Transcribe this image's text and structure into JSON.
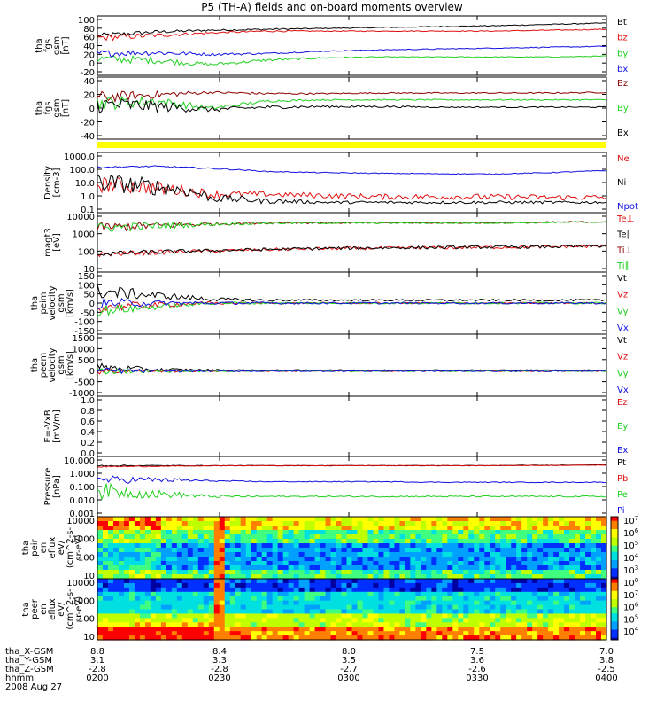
{
  "title": "P5 (TH-A) fields and on-board moments overview",
  "colors": {
    "black": "#000000",
    "red": "#e01010",
    "green": "#20d020",
    "blue": "#1010e0",
    "darkred": "#8b0000",
    "yellow": "#ffff00"
  },
  "chart_data": [
    {
      "type": "line",
      "ylabel": [
        "tha",
        "fgs",
        "gsm",
        "[nT]"
      ],
      "ytick_labels": [
        "100",
        "80",
        "60",
        "40",
        "20",
        "0",
        "-20"
      ],
      "ylim": [
        -25,
        100
      ],
      "series": [
        {
          "name": "Bt",
          "color": "black",
          "level": [
            60,
            68,
            72,
            74,
            76,
            78,
            80,
            82,
            85,
            88
          ],
          "noise": [
            6,
            4,
            2,
            2,
            1,
            1,
            1,
            1,
            1,
            1
          ]
        },
        {
          "name": "bz",
          "color": "red",
          "level": [
            55,
            60,
            66,
            70,
            70,
            70,
            70,
            70,
            72,
            74
          ],
          "noise": [
            8,
            5,
            2,
            2,
            1,
            1,
            1,
            1,
            1,
            1
          ]
        },
        {
          "name": "by",
          "color": "green",
          "level": [
            8,
            5,
            -5,
            5,
            10,
            12,
            12,
            12,
            12,
            14
          ],
          "noise": [
            10,
            8,
            4,
            3,
            2,
            1,
            1,
            1,
            1,
            1
          ]
        },
        {
          "name": "bx",
          "color": "blue",
          "level": [
            20,
            22,
            18,
            20,
            25,
            28,
            30,
            32,
            34,
            36
          ],
          "noise": [
            8,
            6,
            3,
            2,
            1,
            1,
            1,
            1,
            1,
            1
          ]
        }
      ]
    },
    {
      "type": "line",
      "ylabel": [
        "tha",
        "fgs",
        "gsm",
        "[nT]"
      ],
      "ytick_labels": [
        "40",
        "20",
        "0",
        "-20",
        "-40"
      ],
      "ylim": [
        -55,
        40
      ],
      "series": [
        {
          "name": "Bz",
          "color": "darkred",
          "level": [
            10,
            14,
            18,
            16,
            16,
            17,
            17,
            17,
            17,
            18
          ],
          "noise": [
            10,
            6,
            2,
            2,
            1,
            1,
            1,
            1,
            1,
            1
          ]
        },
        {
          "name": "By",
          "color": "green",
          "level": [
            0,
            4,
            -8,
            4,
            6,
            6,
            6,
            6,
            6,
            6
          ],
          "noise": [
            12,
            8,
            4,
            2,
            1,
            1,
            1,
            1,
            1,
            1
          ]
        },
        {
          "name": "Bx",
          "color": "black",
          "level": [
            -2,
            -4,
            -10,
            -6,
            -5,
            -5,
            -6,
            -6,
            -6,
            -6
          ],
          "noise": [
            14,
            10,
            4,
            3,
            2,
            2,
            1,
            1,
            1,
            1
          ]
        }
      ]
    },
    {
      "type": "line",
      "ylabel": [
        "Density",
        "[cm-3]"
      ],
      "ytick_labels": [
        "1000.0",
        "100.0",
        "10.0",
        "1.0",
        "0.1"
      ],
      "ylim": [
        0.1,
        1000
      ],
      "log": true,
      "series": [
        {
          "name": "Ne",
          "color": "red",
          "level": [
            8,
            4,
            1.5,
            1.5,
            1.2,
            1.0,
            1.0,
            1.0,
            0.9,
            0.9
          ],
          "noise": [
            0.6,
            0.5,
            0.3,
            0.2,
            0.2,
            0.2,
            0.2,
            0.2,
            0.2,
            0.2
          ]
        },
        {
          "name": "Ni",
          "color": "black",
          "level": [
            10,
            5,
            0.8,
            0.5,
            0.4,
            0.4,
            0.4,
            0.4,
            0.4,
            0.4
          ],
          "noise": [
            0.7,
            0.6,
            0.3,
            0.2,
            0.1,
            0.1,
            0.1,
            0.1,
            0.1,
            0.1
          ]
        },
        {
          "name": "Npot",
          "color": "blue",
          "level": [
            120,
            140,
            100,
            60,
            50,
            45,
            42,
            40,
            50,
            70
          ],
          "noise": [
            0.05,
            0.05,
            0.05,
            0.03,
            0.03,
            0.03,
            0.03,
            0.03,
            0.03,
            0.03
          ]
        }
      ]
    },
    {
      "type": "line",
      "ylabel": [
        "magt3",
        "[eV]"
      ],
      "ytick_labels": [
        "10000",
        "1000",
        "100",
        "10"
      ],
      "ylim": [
        3,
        10000
      ],
      "log": true,
      "series": [
        {
          "name": "Te⊥",
          "color": "red",
          "level": [
            30,
            40,
            50,
            60,
            70,
            75,
            80,
            85,
            90,
            100
          ],
          "noise": [
            0.15,
            0.15,
            0.1,
            0.1,
            0.1,
            0.1,
            0.1,
            0.1,
            0.1,
            0.1
          ]
        },
        {
          "name": "Te∥",
          "color": "black",
          "level": [
            32,
            42,
            52,
            62,
            72,
            78,
            82,
            88,
            92,
            102
          ],
          "noise": [
            0.15,
            0.15,
            0.1,
            0.1,
            0.1,
            0.1,
            0.1,
            0.1,
            0.1,
            0.1
          ]
        },
        {
          "name": "Ti⊥",
          "color": "darkred",
          "level": [
            1500,
            2000,
            2500,
            3000,
            3000,
            3000,
            3000,
            3000,
            3200,
            3500
          ],
          "noise": [
            0.3,
            0.25,
            0.1,
            0.08,
            0.06,
            0.05,
            0.05,
            0.05,
            0.05,
            0.05
          ]
        },
        {
          "name": "Ti∥",
          "color": "green",
          "level": [
            1400,
            1900,
            2400,
            2900,
            2900,
            2900,
            2900,
            2900,
            3100,
            3400
          ],
          "noise": [
            0.3,
            0.25,
            0.1,
            0.08,
            0.06,
            0.05,
            0.05,
            0.05,
            0.05,
            0.05
          ]
        }
      ]
    },
    {
      "type": "line",
      "ylabel": [
        "tha",
        "peim",
        "velocity",
        "gsm",
        "[km/s]"
      ],
      "ytick_labels": [
        "150",
        "100",
        "50",
        "0",
        "-50",
        "-100",
        "-150"
      ],
      "ylim": [
        -150,
        150
      ],
      "series": [
        {
          "name": "Vt",
          "color": "black",
          "level": [
            60,
            40,
            20,
            15,
            15,
            15,
            15,
            15,
            15,
            15
          ],
          "noise": [
            40,
            20,
            10,
            6,
            5,
            5,
            5,
            5,
            5,
            5
          ]
        },
        {
          "name": "Vz",
          "color": "red",
          "level": [
            -20,
            -10,
            0,
            0,
            0,
            0,
            0,
            0,
            0,
            0
          ],
          "noise": [
            30,
            15,
            8,
            5,
            4,
            4,
            4,
            4,
            4,
            4
          ]
        },
        {
          "name": "Vy",
          "color": "green",
          "level": [
            -40,
            -20,
            0,
            0,
            0,
            0,
            0,
            0,
            0,
            0
          ],
          "noise": [
            30,
            15,
            8,
            6,
            5,
            5,
            5,
            5,
            5,
            5
          ]
        },
        {
          "name": "Vx",
          "color": "blue",
          "level": [
            0,
            0,
            0,
            0,
            0,
            0,
            0,
            0,
            0,
            0
          ],
          "noise": [
            30,
            15,
            8,
            6,
            5,
            5,
            5,
            5,
            5,
            5
          ]
        }
      ]
    },
    {
      "type": "line",
      "ylabel": [
        "tha",
        "peem",
        "velocity",
        "gsm",
        "[km/s]"
      ],
      "ytick_labels": [
        "1500",
        "1000",
        "500",
        "0",
        "-500",
        "-1000"
      ],
      "ylim": [
        -1000,
        1500
      ],
      "series": [
        {
          "name": "Vt",
          "color": "black",
          "level": [
            150,
            60,
            40,
            30,
            30,
            30,
            30,
            30,
            30,
            30
          ],
          "noise": [
            200,
            80,
            40,
            30,
            30,
            30,
            30,
            30,
            30,
            30
          ]
        },
        {
          "name": "Vz",
          "color": "red",
          "level": [
            0,
            0,
            0,
            0,
            0,
            0,
            0,
            0,
            0,
            0
          ],
          "noise": [
            150,
            60,
            40,
            30,
            30,
            30,
            30,
            30,
            30,
            30
          ]
        },
        {
          "name": "Vy",
          "color": "green",
          "level": [
            0,
            0,
            0,
            0,
            0,
            0,
            0,
            0,
            0,
            0
          ],
          "noise": [
            150,
            60,
            40,
            30,
            30,
            30,
            30,
            30,
            30,
            30
          ]
        },
        {
          "name": "Vx",
          "color": "blue",
          "level": [
            0,
            0,
            0,
            0,
            0,
            0,
            0,
            0,
            0,
            0
          ],
          "noise": [
            150,
            60,
            40,
            30,
            30,
            30,
            30,
            30,
            30,
            30
          ]
        }
      ]
    },
    {
      "type": "line",
      "ylabel": [
        "E=-VxB",
        "[mV/m]"
      ],
      "ytick_labels": [
        "1.0",
        "0.8",
        "0.6",
        "0.4",
        "0.2",
        "0.0"
      ],
      "ylim": [
        0,
        1
      ],
      "series": [
        {
          "name": "Ez",
          "color": "red",
          "level": [],
          "noise": []
        },
        {
          "name": "Ey",
          "color": "green",
          "level": [],
          "noise": []
        },
        {
          "name": "Ex",
          "color": "blue",
          "level": [],
          "noise": []
        }
      ]
    },
    {
      "type": "line",
      "ylabel": [
        "Pressure",
        "[nPa]"
      ],
      "ytick_labels": [
        "10.000",
        "1.000",
        "0.100",
        "0.010",
        "0.001"
      ],
      "ylim": [
        0.001,
        10
      ],
      "log": true,
      "series": [
        {
          "name": "Pt",
          "color": "black",
          "level": [
            3,
            3,
            3,
            3,
            3,
            3,
            3,
            3,
            3.2,
            3.5
          ],
          "noise": [
            0.05,
            0.03,
            0.02,
            0.02,
            0.02,
            0.02,
            0.02,
            0.02,
            0.02,
            0.02
          ]
        },
        {
          "name": "Pb",
          "color": "red",
          "level": [
            2.5,
            2.7,
            2.9,
            3,
            3,
            3,
            3,
            3,
            3.1,
            3.3
          ],
          "noise": [
            0.05,
            0.03,
            0.02,
            0.02,
            0.02,
            0.02,
            0.02,
            0.02,
            0.02,
            0.02
          ]
        },
        {
          "name": "Pe",
          "color": "green",
          "level": [
            0.05,
            0.03,
            0.02,
            0.02,
            0.02,
            0.02,
            0.02,
            0.02,
            0.02,
            0.02
          ],
          "noise": [
            0.6,
            0.3,
            0.1,
            0.05,
            0.05,
            0.05,
            0.05,
            0.05,
            0.05,
            0.05
          ]
        },
        {
          "name": "Pi",
          "color": "blue",
          "level": [
            0.3,
            0.3,
            0.25,
            0.22,
            0.22,
            0.22,
            0.2,
            0.2,
            0.2,
            0.2
          ],
          "noise": [
            0.3,
            0.2,
            0.05,
            0.03,
            0.03,
            0.03,
            0.03,
            0.03,
            0.03,
            0.03
          ]
        }
      ]
    },
    {
      "type": "heatmap",
      "ylabel": [
        "tha",
        "peir",
        "en",
        "eflux",
        "eV/",
        "(cm^2-s-",
        "sr-eV)"
      ],
      "ytick_labels": [
        "10000",
        "1000",
        "100",
        "10"
      ],
      "colorbar_ticks": [
        "10^7",
        "10^6",
        "10^5",
        "10^4",
        "10^3"
      ]
    },
    {
      "type": "heatmap",
      "ylabel": [
        "tha",
        "peer",
        "en",
        "eflux",
        "eV/",
        "(cm^2-s-",
        "sr-eV)"
      ],
      "ytick_labels": [
        "10000",
        "1000",
        "100",
        "10"
      ],
      "colorbar_ticks": [
        "10^8",
        "10^7",
        "10^6",
        "10^5",
        "10^4"
      ]
    }
  ],
  "xaxis": {
    "rows": [
      {
        "name": "tha_X-GSM",
        "values": [
          "8.8",
          "8.4",
          "8.0",
          "7.5",
          "7.0"
        ]
      },
      {
        "name": "tha_Y-GSM",
        "values": [
          "3.1",
          "3.3",
          "3.5",
          "3.6",
          "3.8"
        ]
      },
      {
        "name": "tha_Z-GSM",
        "values": [
          "-2.8",
          "-2.8",
          "-2.7",
          "-2.6",
          "-2.5"
        ]
      },
      {
        "name": "hhmm",
        "values": [
          "0200",
          "0230",
          "0300",
          "0330",
          "0400"
        ]
      }
    ],
    "date": "2008 Aug 27"
  }
}
